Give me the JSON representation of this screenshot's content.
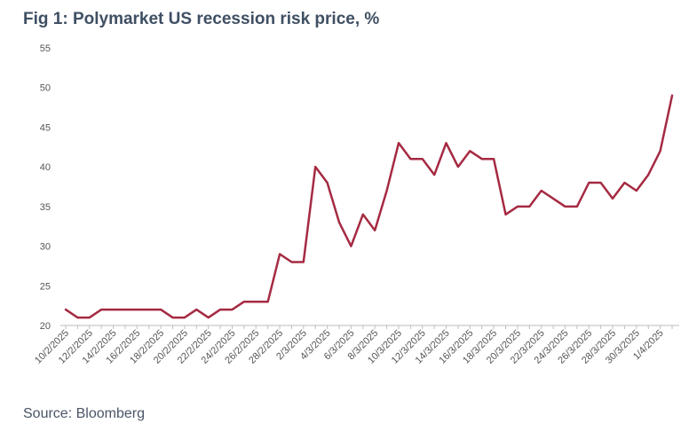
{
  "chart_data": {
    "type": "line",
    "title": "Fig 1: Polymarket US recession risk price, %",
    "source": "Source: Bloomberg",
    "xlabel": "",
    "ylabel": "",
    "ylim": [
      20,
      55
    ],
    "yticks": [
      20,
      25,
      30,
      35,
      40,
      45,
      50,
      55
    ],
    "grid": false,
    "line_color": "#a52a42",
    "x_tick_labels": [
      "10/2/2025",
      "12/2/2025",
      "14/2/2025",
      "16/2/2025",
      "18/2/2025",
      "20/2/2025",
      "22/2/2025",
      "24/2/2025",
      "26/2/2025",
      "28/2/2025",
      "2/3/2025",
      "4/3/2025",
      "6/3/2025",
      "8/3/2025",
      "10/3/2025",
      "12/3/2025",
      "14/3/2025",
      "16/3/2025",
      "18/3/2025",
      "20/3/2025",
      "22/3/2025",
      "24/3/2025",
      "26/3/2025",
      "28/3/2025",
      "30/3/2025",
      "1/4/2025"
    ],
    "series": [
      {
        "x": [
          "10/2/2025",
          "11/2/2025",
          "12/2/2025",
          "13/2/2025",
          "14/2/2025",
          "15/2/2025",
          "16/2/2025",
          "17/2/2025",
          "18/2/2025",
          "19/2/2025",
          "20/2/2025",
          "21/2/2025",
          "22/2/2025",
          "23/2/2025",
          "24/2/2025",
          "25/2/2025",
          "26/2/2025",
          "27/2/2025",
          "28/2/2025",
          "1/3/2025",
          "2/3/2025",
          "3/3/2025",
          "4/3/2025",
          "5/3/2025",
          "6/3/2025",
          "7/3/2025",
          "8/3/2025",
          "9/3/2025",
          "10/3/2025",
          "11/3/2025",
          "12/3/2025",
          "13/3/2025",
          "14/3/2025",
          "15/3/2025",
          "16/3/2025",
          "17/3/2025",
          "18/3/2025",
          "19/3/2025",
          "20/3/2025",
          "21/3/2025",
          "22/3/2025",
          "23/3/2025",
          "24/3/2025",
          "25/3/2025",
          "26/3/2025",
          "27/3/2025",
          "28/3/2025",
          "29/3/2025",
          "30/3/2025",
          "31/3/2025",
          "1/4/2025",
          "2/4/2025"
        ],
        "values": [
          22,
          21,
          21,
          22,
          22,
          22,
          22,
          22,
          22,
          21,
          21,
          22,
          21,
          22,
          22,
          23,
          23,
          23,
          29,
          28,
          28,
          40,
          38,
          33,
          30,
          34,
          32,
          37,
          43,
          41,
          41,
          39,
          43,
          40,
          42,
          41,
          41,
          34,
          35,
          35,
          37,
          36,
          35,
          35,
          38,
          38,
          36,
          38,
          37,
          39,
          42,
          49
        ]
      }
    ]
  }
}
